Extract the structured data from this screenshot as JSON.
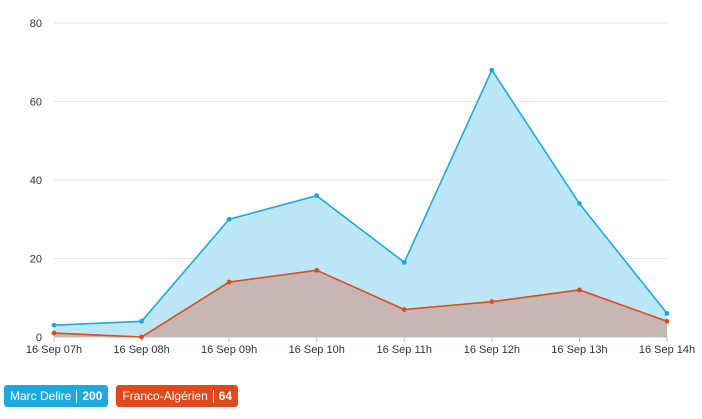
{
  "chart_data": {
    "type": "area",
    "x": [
      "16 Sep 07h",
      "16 Sep 08h",
      "16 Sep 09h",
      "16 Sep 10h",
      "16 Sep 11h",
      "16 Sep 12h",
      "16 Sep 13h",
      "16 Sep 14h"
    ],
    "ylim": [
      0,
      80
    ],
    "yticks": [
      0,
      20,
      40,
      60,
      80
    ],
    "grid": true,
    "legend_position": "bottom-left",
    "series": [
      {
        "name": "Marc Delire",
        "values": [
          3,
          4,
          30,
          36,
          19,
          68,
          34,
          6
        ],
        "line_color": "#1ea9dd",
        "fill_color": "#bde6f6"
      },
      {
        "name": "Franco-Algérien",
        "values": [
          1,
          0,
          14,
          17,
          7,
          9,
          12,
          4
        ],
        "line_color": "#dd4b1c",
        "fill_color": "#c6b6b4"
      }
    ]
  },
  "legend": [
    {
      "label": "Marc Delire",
      "count": "200",
      "color": "#1ea9dd"
    },
    {
      "label": "Franco-Algérien",
      "count": "64",
      "color": "#dd4b1c"
    }
  ]
}
